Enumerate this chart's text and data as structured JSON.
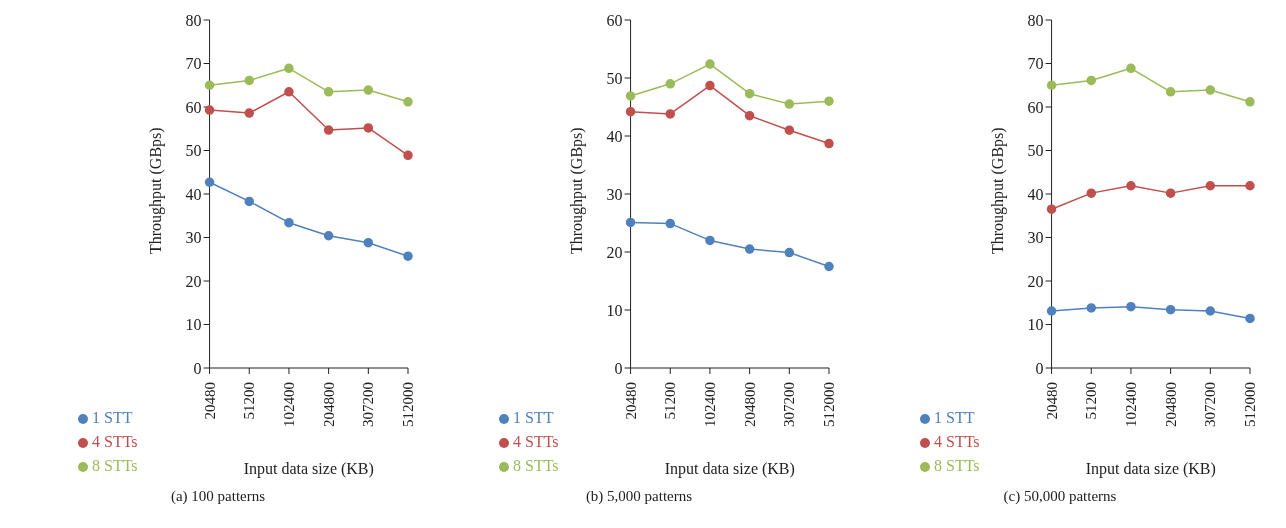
{
  "chart_data": [
    {
      "type": "line",
      "title": "(a)  100 patterns",
      "xlabel": "Input data size (KB)",
      "ylabel": "Throughput (GBps)",
      "categories": [
        "20480",
        "51200",
        "102400",
        "204800",
        "307200",
        "512000"
      ],
      "ylim": [
        0,
        80
      ],
      "yticks": [
        0,
        10,
        20,
        30,
        40,
        50,
        60,
        70,
        80
      ],
      "grid": false,
      "legend": "bottom",
      "marker": "circle",
      "line_style": "solid",
      "series": [
        {
          "name": "1 STT",
          "color": "#4f81bd",
          "values": [
            42.7,
            38.3,
            33.4,
            30.4,
            28.8,
            25.7
          ]
        },
        {
          "name": "4 STTs",
          "color": "#c0504d",
          "values": [
            59.3,
            58.6,
            63.5,
            54.7,
            55.2,
            48.9
          ]
        },
        {
          "name": "8 STTs",
          "color": "#9bbb59",
          "values": [
            65,
            66.1,
            68.9,
            63.5,
            63.9,
            61.2
          ]
        }
      ]
    },
    {
      "type": "line",
      "title": "(b)  5,000 patterns",
      "xlabel": "Input data size (KB)",
      "ylabel": "Throughput (GBps)",
      "categories": [
        "20480",
        "51200",
        "102400",
        "204800",
        "307200",
        "512000"
      ],
      "ylim": [
        0,
        60
      ],
      "yticks": [
        0,
        10,
        20,
        30,
        40,
        50,
        60
      ],
      "grid": false,
      "legend": "bottom",
      "marker": "circle",
      "line_style": "solid",
      "series": [
        {
          "name": "1 STT",
          "color": "#4f81bd",
          "values": [
            25.1,
            24.9,
            22,
            20.5,
            19.9,
            17.5
          ]
        },
        {
          "name": "4 STTs",
          "color": "#c0504d",
          "values": [
            44.2,
            43.8,
            48.7,
            43.5,
            41,
            38.7
          ]
        },
        {
          "name": "8 STTs",
          "color": "#9bbb59",
          "values": [
            46.9,
            49,
            52.4,
            47.3,
            45.5,
            46
          ]
        }
      ]
    },
    {
      "type": "line",
      "title": "(c)  50,000 patterns",
      "xlabel": "Input data size (KB)",
      "ylabel": "Throughput (GBps)",
      "categories": [
        "20480",
        "51200",
        "102400",
        "204800",
        "307200",
        "512000"
      ],
      "ylim": [
        0,
        80
      ],
      "yticks": [
        0,
        10,
        20,
        30,
        40,
        50,
        60,
        70,
        80
      ],
      "grid": false,
      "legend": "bottom",
      "marker": "circle",
      "line_style": "solid",
      "series": [
        {
          "name": "1 STT",
          "color": "#4f81bd",
          "values": [
            13.1,
            13.8,
            14.1,
            13.4,
            13.1,
            11.4
          ]
        },
        {
          "name": "4 STTs",
          "color": "#c0504d",
          "values": [
            36.5,
            40.2,
            41.9,
            40.2,
            41.9,
            41.9
          ]
        },
        {
          "name": "8 STTs",
          "color": "#9bbb59",
          "values": [
            65,
            66.1,
            68.9,
            63.5,
            63.9,
            61.2
          ]
        }
      ]
    }
  ]
}
